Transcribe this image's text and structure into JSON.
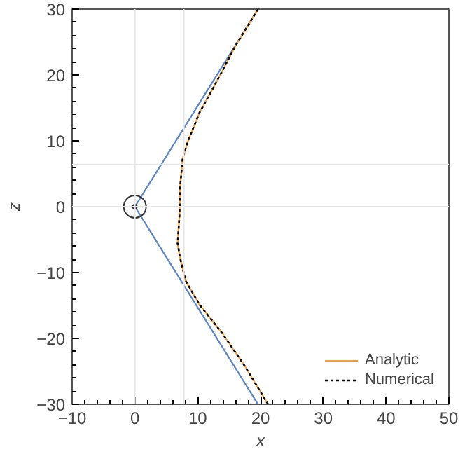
{
  "chart_data": {
    "type": "line",
    "xlabel": "x",
    "ylabel": "z",
    "xlim": [
      -10,
      50
    ],
    "ylim": [
      -30,
      30
    ],
    "xticks": [
      -10,
      0,
      10,
      20,
      30,
      40,
      50
    ],
    "yticks": [
      -30,
      -20,
      -10,
      0,
      10,
      20,
      30
    ],
    "grid": false,
    "legend": "bottom right",
    "ref_lines": [
      {
        "axis": "x",
        "value": 0,
        "color": "#e6e6e6"
      },
      {
        "axis": "x",
        "value": 7.8,
        "color": "#e6e6e6"
      },
      {
        "axis": "y",
        "value": 0,
        "color": "#e6e6e6"
      },
      {
        "axis": "y",
        "value": 6.4,
        "color": "#e6e6e6"
      }
    ],
    "series": [
      {
        "color": "#5b84c4",
        "x": [
          0,
          19.6
        ],
        "values": [
          0,
          30
        ],
        "line_style": "solid"
      },
      {
        "color": "#5b84c4",
        "x": [
          0,
          19.6
        ],
        "values": [
          0,
          -30
        ],
        "line_style": "solid"
      },
      {
        "name": "Analytic",
        "color": "#f5a040",
        "line_style": "solid",
        "x": [
          19.6,
          16,
          12.8,
          10.3,
          8.5,
          7.6,
          7.2,
          7.1,
          6.8,
          7.2,
          8.1,
          10.3,
          13.9,
          17.5,
          21.2
        ],
        "values": [
          30,
          24.4,
          18.6,
          14.3,
          10.1,
          7.3,
          3.0,
          -1.3,
          -5.6,
          -7.8,
          -11.3,
          -14.9,
          -19.2,
          -24.2,
          -30
        ]
      },
      {
        "name": "Numerical",
        "color": "#000000",
        "line_style": "dashed",
        "x": [
          19.6,
          16,
          12.8,
          10.3,
          8.5,
          7.6,
          7.2,
          7.1,
          6.8,
          7.2,
          8.1,
          10.3,
          13.9,
          17.5,
          21.2
        ],
        "values": [
          30,
          24.4,
          18.6,
          14.3,
          10.1,
          7.3,
          3.0,
          -1.3,
          -5.6,
          -7.8,
          -11.3,
          -14.9,
          -19.2,
          -24.2,
          -30
        ]
      },
      {
        "type": "scatter",
        "marker": "circle",
        "color": "#333333",
        "x": [
          0
        ],
        "values": [
          0
        ]
      }
    ]
  }
}
